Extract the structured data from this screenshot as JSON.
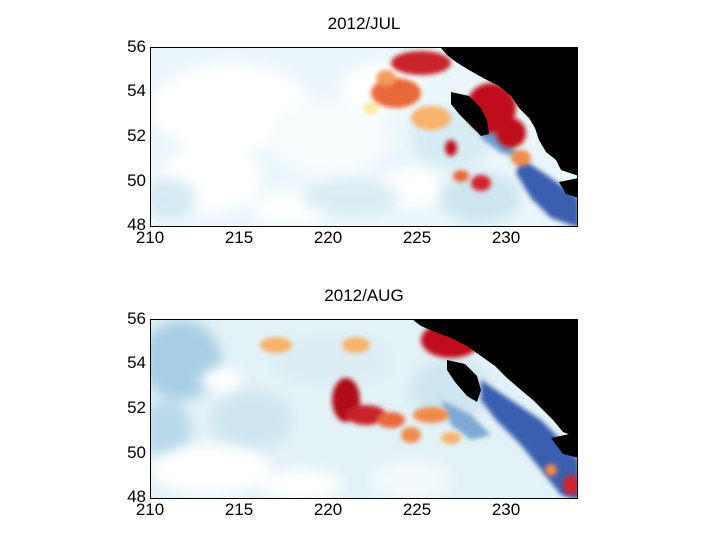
{
  "panels": [
    {
      "title": "2012/JUL",
      "y_ticks": [
        "56",
        "54",
        "52",
        "50",
        "48"
      ],
      "x_ticks": [
        "210",
        "215",
        "220",
        "225",
        "230"
      ]
    },
    {
      "title": "2012/AUG",
      "y_ticks": [
        "56",
        "54",
        "52",
        "50",
        "48"
      ],
      "x_ticks": [
        "210",
        "215",
        "220",
        "225",
        "230"
      ]
    }
  ],
  "map": {
    "lon_range": [
      210,
      234
    ],
    "lat_range": [
      48,
      56
    ],
    "land_color": "#000000",
    "colormap": [
      "#2c4fa3",
      "#7fb3d5",
      "#d9eef5",
      "#ffffff",
      "#fde9a0",
      "#f08a4b",
      "#c0101c"
    ]
  }
}
